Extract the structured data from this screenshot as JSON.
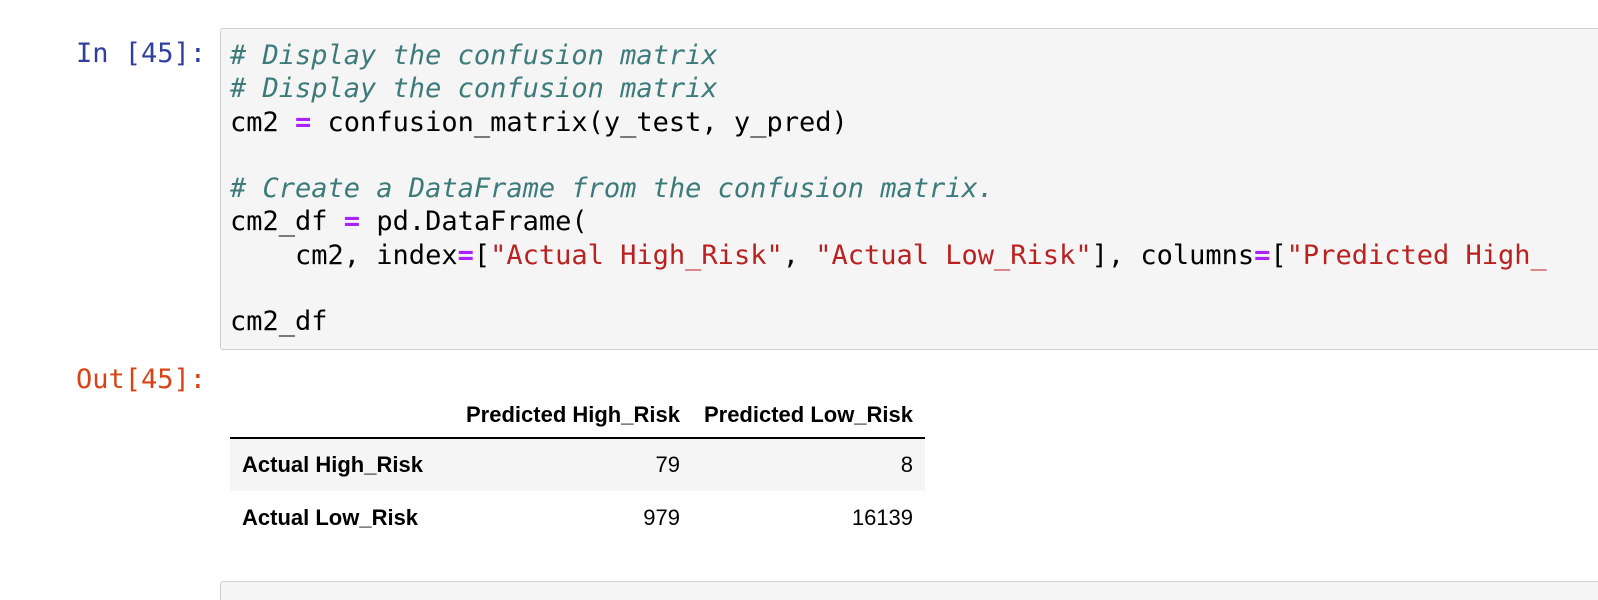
{
  "cell": {
    "in_prompt": "In [45]:",
    "out_prompt": "Out[45]:",
    "code_lines": [
      [
        {
          "t": "comment",
          "s": "# Display the confusion matrix"
        }
      ],
      [
        {
          "t": "comment",
          "s": "# Display the confusion matrix"
        }
      ],
      [
        {
          "t": "plain",
          "s": "cm2 "
        },
        {
          "t": "op",
          "s": "="
        },
        {
          "t": "plain",
          "s": " confusion_matrix(y_test, y_pred)"
        }
      ],
      [],
      [
        {
          "t": "comment",
          "s": "# Create a DataFrame from the confusion matrix."
        }
      ],
      [
        {
          "t": "plain",
          "s": "cm2_df "
        },
        {
          "t": "op",
          "s": "="
        },
        {
          "t": "plain",
          "s": " pd.DataFrame("
        }
      ],
      [
        {
          "t": "plain",
          "s": "    cm2, index"
        },
        {
          "t": "op",
          "s": "="
        },
        {
          "t": "plain",
          "s": "["
        },
        {
          "t": "str",
          "s": "\"Actual High_Risk\""
        },
        {
          "t": "plain",
          "s": ", "
        },
        {
          "t": "str",
          "s": "\"Actual Low_Risk\""
        },
        {
          "t": "plain",
          "s": "], columns"
        },
        {
          "t": "op",
          "s": "="
        },
        {
          "t": "plain",
          "s": "["
        },
        {
          "t": "str",
          "s": "\"Predicted High_"
        }
      ],
      [],
      [
        {
          "t": "plain",
          "s": "cm2_df"
        }
      ]
    ]
  },
  "output": {
    "table": {
      "columns": [
        "Predicted High_Risk",
        "Predicted Low_Risk"
      ],
      "rows": [
        {
          "index": "Actual High_Risk",
          "values": [
            "79",
            "8"
          ]
        },
        {
          "index": "Actual Low_Risk",
          "values": [
            "979",
            "16139"
          ]
        }
      ]
    }
  },
  "colors": {
    "in_prompt": "#303f9f",
    "out_prompt": "#d84315",
    "comment": "#3d7b7b",
    "operator": "#aa22ff",
    "string": "#ba2121",
    "cell_background": "#f5f5f5"
  }
}
